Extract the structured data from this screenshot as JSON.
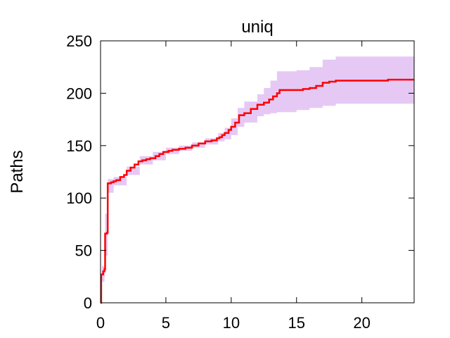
{
  "chart_data": {
    "type": "line",
    "title": "uniq",
    "xlabel": "",
    "ylabel": "Paths",
    "xlim": [
      0,
      24
    ],
    "ylim": [
      0,
      250
    ],
    "xticks": [
      0,
      5,
      10,
      15,
      20
    ],
    "yticks": [
      0,
      50,
      100,
      150,
      200,
      250
    ],
    "grid": false,
    "colors": {
      "line": "#ff0000",
      "band": "#e6c8f5",
      "frame": "#000000"
    },
    "series": [
      {
        "kind": "step-line",
        "points": [
          [
            0,
            0
          ],
          [
            0.05,
            27
          ],
          [
            0.2,
            30
          ],
          [
            0.3,
            32
          ],
          [
            0.35,
            66
          ],
          [
            0.5,
            67
          ],
          [
            0.55,
            114
          ],
          [
            0.8,
            115
          ],
          [
            1.0,
            116
          ],
          [
            1.2,
            117
          ],
          [
            1.5,
            120
          ],
          [
            1.8,
            122
          ],
          [
            2.0,
            126
          ],
          [
            2.3,
            129
          ],
          [
            2.6,
            132
          ],
          [
            2.9,
            135
          ],
          [
            3.2,
            136
          ],
          [
            3.5,
            137
          ],
          [
            3.8,
            138
          ],
          [
            4.2,
            140
          ],
          [
            4.5,
            142
          ],
          [
            4.8,
            144
          ],
          [
            5.2,
            145
          ],
          [
            5.5,
            146
          ],
          [
            6.0,
            147
          ],
          [
            6.5,
            148
          ],
          [
            7.0,
            150
          ],
          [
            7.5,
            152
          ],
          [
            8.0,
            154
          ],
          [
            8.5,
            155
          ],
          [
            8.9,
            157
          ],
          [
            9.1,
            158
          ],
          [
            9.3,
            160
          ],
          [
            9.5,
            162
          ],
          [
            9.8,
            165
          ],
          [
            10.0,
            168
          ],
          [
            10.3,
            172
          ],
          [
            10.6,
            179
          ],
          [
            11.0,
            181
          ],
          [
            11.5,
            185
          ],
          [
            12.0,
            189
          ],
          [
            12.5,
            191
          ],
          [
            12.9,
            194
          ],
          [
            13.2,
            197
          ],
          [
            13.5,
            200
          ],
          [
            13.7,
            203
          ],
          [
            14.5,
            203
          ],
          [
            15.0,
            203
          ],
          [
            15.5,
            204
          ],
          [
            16.0,
            205
          ],
          [
            16.5,
            207
          ],
          [
            17.0,
            210
          ],
          [
            17.5,
            211
          ],
          [
            18.0,
            212
          ],
          [
            19.0,
            212
          ],
          [
            20.0,
            212
          ],
          [
            22.0,
            213
          ],
          [
            24.0,
            213
          ]
        ]
      },
      {
        "kind": "band",
        "points": [
          [
            0,
            0,
            8
          ],
          [
            0.1,
            20,
            35
          ],
          [
            0.3,
            25,
            45
          ],
          [
            0.35,
            45,
            85
          ],
          [
            0.55,
            105,
            118
          ],
          [
            1.0,
            112,
            120
          ],
          [
            2.0,
            122,
            130
          ],
          [
            3.0,
            132,
            140
          ],
          [
            4.0,
            136,
            144
          ],
          [
            5.0,
            142,
            148
          ],
          [
            6.0,
            145,
            150
          ],
          [
            7.0,
            148,
            153
          ],
          [
            8.0,
            151,
            157
          ],
          [
            9.0,
            154,
            162
          ],
          [
            9.5,
            156,
            167
          ],
          [
            10.0,
            160,
            176
          ],
          [
            10.5,
            168,
            186
          ],
          [
            11.0,
            172,
            192
          ],
          [
            12.0,
            178,
            199
          ],
          [
            12.5,
            180,
            205
          ],
          [
            13.0,
            181,
            212
          ],
          [
            13.5,
            182,
            221
          ],
          [
            15.0,
            184,
            222
          ],
          [
            16.0,
            186,
            225
          ],
          [
            17.0,
            188,
            232
          ],
          [
            18.0,
            190,
            235
          ],
          [
            20.0,
            190,
            235
          ],
          [
            24.0,
            190,
            235
          ]
        ]
      }
    ]
  }
}
